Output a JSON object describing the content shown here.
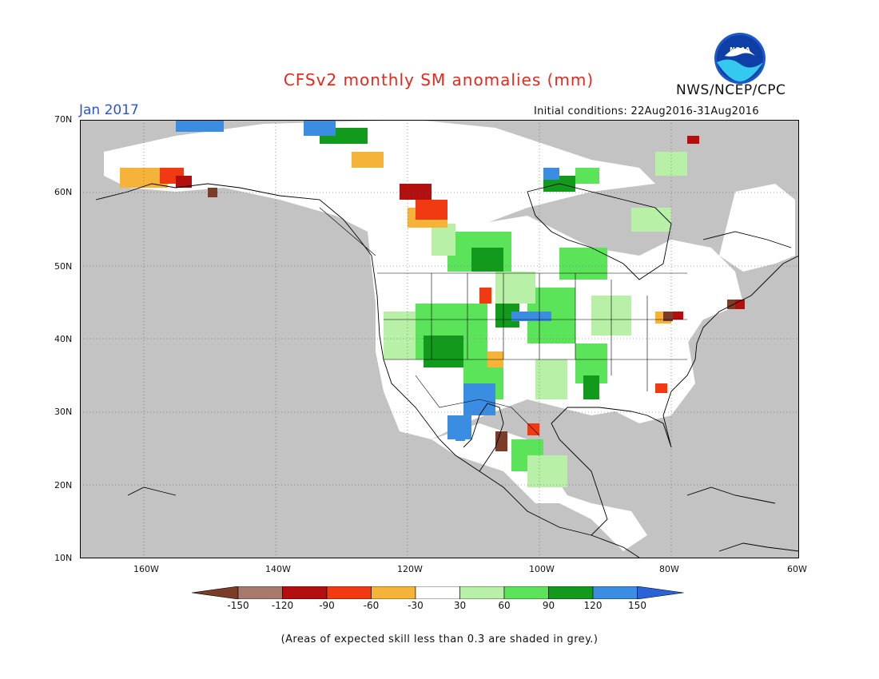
{
  "title": "CFSv2 monthly SM anomalies (mm)",
  "org": "NWS/NCEP/CPC",
  "logo_text": "NOAA",
  "month": "Jan 2017",
  "initial_conditions": "Initial conditions: 22Aug2016-31Aug2016",
  "lat_labels": [
    "70N",
    "60N",
    "50N",
    "40N",
    "30N",
    "20N",
    "10N"
  ],
  "lon_labels": [
    "160W",
    "140W",
    "120W",
    "100W",
    "80W",
    "60W"
  ],
  "colorbar": {
    "colors": [
      "#7b3c28",
      "#a87a6e",
      "#b30f0f",
      "#f23a12",
      "#f6b33a",
      "#ffffff",
      "#b7f0a6",
      "#5be35a",
      "#119a1c",
      "#3a8de0",
      "#2a62d8"
    ],
    "ticks": [
      "-150",
      "-120",
      "-90",
      "-60",
      "-30",
      "30",
      "60",
      "90",
      "120",
      "150"
    ]
  },
  "note": "(Areas of expected skill less than 0.3 are shaded in grey.)",
  "legend_colors": {
    "grey": "#c3c3c3",
    "white": "#ffffff",
    "light_green": "#b7f0a6",
    "green": "#5be35a",
    "dark_green": "#119a1c",
    "blue": "#3a8de0",
    "orange": "#f6b33a",
    "red": "#f23a12",
    "dark_red": "#b30f0f",
    "brown": "#7b3c28"
  }
}
